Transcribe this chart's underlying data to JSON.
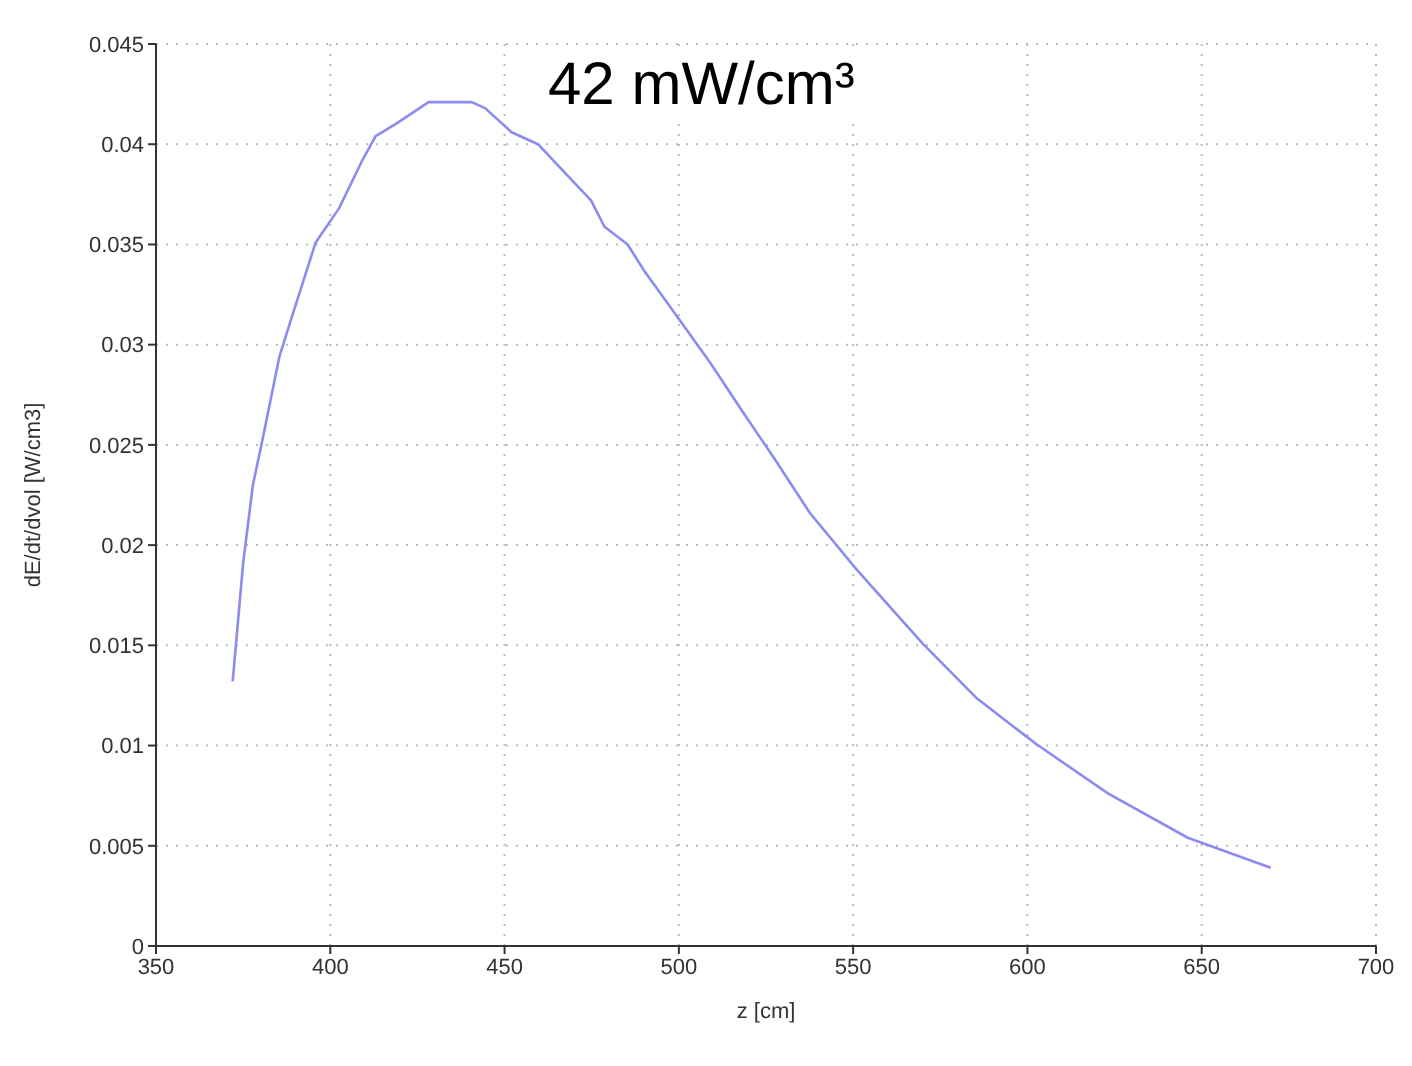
{
  "chart_data": {
    "type": "line",
    "xlabel": "z [cm]",
    "ylabel": "dE/dt/dvol [W/cm3]",
    "annotations": [
      "42 mW/cm³"
    ],
    "xlim": [
      350,
      700
    ],
    "xticks": [
      350,
      400,
      450,
      500,
      550,
      600,
      650,
      700
    ],
    "ylim": [
      0,
      0.045
    ],
    "yticks": [
      0,
      0.005,
      0.01,
      0.015,
      0.02,
      0.025,
      0.03,
      0.035,
      0.04,
      0.045
    ],
    "grid": true,
    "marker": "none",
    "line_style": "solid",
    "series": [
      {
        "color": "#8c8cf0",
        "x": [
          372,
          375,
          377.8,
          380.6,
          385.4,
          390.1,
          395.8,
          402.5,
          409.2,
          413,
          418.7,
          428.2,
          433.9,
          440.6,
          444.4,
          452,
          459.6,
          467.2,
          474.8,
          478.6,
          485.3,
          490,
          499.5,
          509,
          518.5,
          527.1,
          537.6,
          550.9,
          569.9,
          585.2,
          602.3,
          623.2,
          646,
          669.8
        ],
        "values": [
          0.0132,
          0.0191,
          0.023,
          0.0253,
          0.0294,
          0.032,
          0.0351,
          0.0368,
          0.0392,
          0.0404,
          0.041,
          0.0421,
          0.0421,
          0.0421,
          0.0418,
          0.0406,
          0.04,
          0.0386,
          0.0372,
          0.0359,
          0.035,
          0.0337,
          0.0314,
          0.0291,
          0.0266,
          0.0244,
          0.0216,
          0.0188,
          0.0151,
          0.0124,
          0.0101,
          0.0076,
          0.0054,
          0.0039
        ]
      }
    ]
  }
}
